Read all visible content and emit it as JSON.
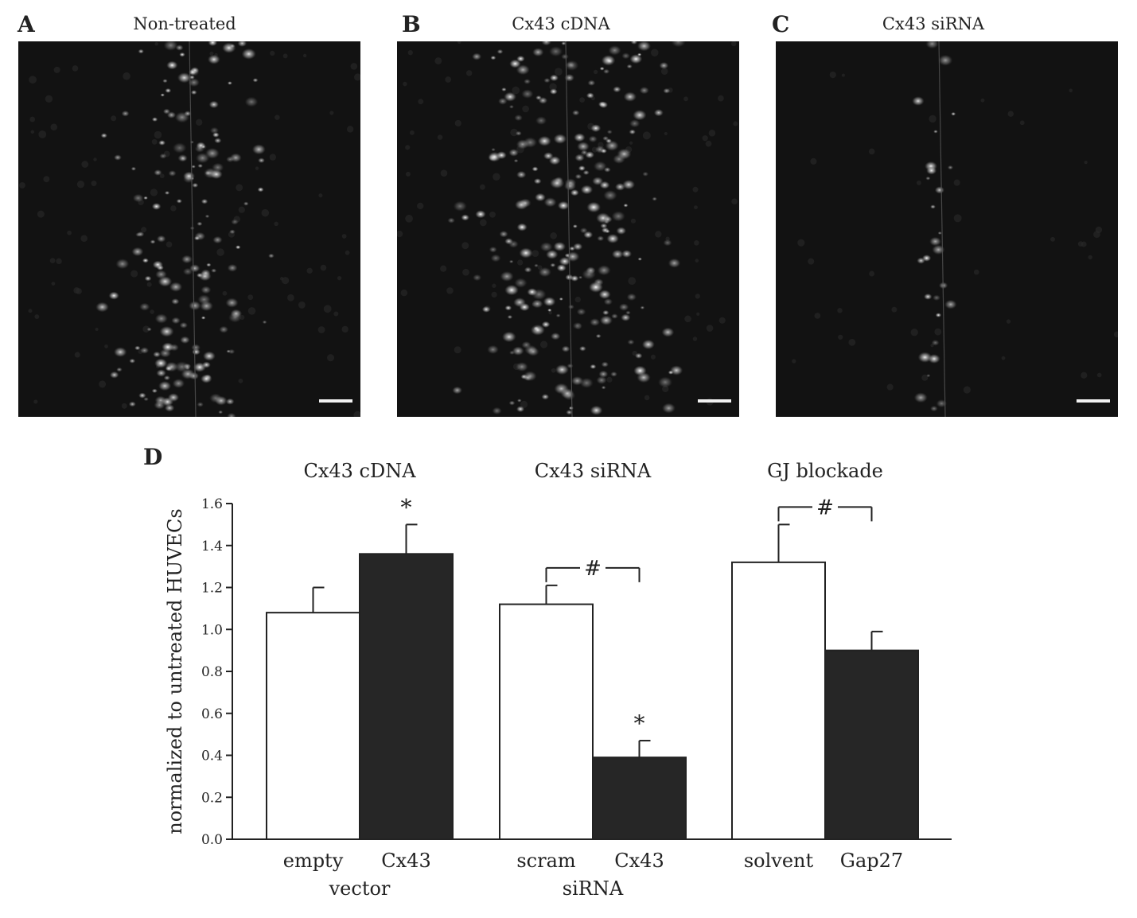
{
  "panels": [
    {
      "letter": "A",
      "title": "Non-treated"
    },
    {
      "letter": "B",
      "title": "Cx43 cDNA"
    },
    {
      "letter": "C",
      "title": "Cx43 siRNA"
    }
  ],
  "chart_letter": "D",
  "chart_data": {
    "type": "bar",
    "ylabel": "normalized to untreated HUVECs",
    "ylim": [
      0,
      1.6
    ],
    "yticks": [
      "0.0",
      "0.2",
      "0.4",
      "0.6",
      "0.8",
      "1.0",
      "1.2",
      "1.4",
      "1.6"
    ],
    "groups": [
      {
        "title": "Cx43 cDNA",
        "sublabel": "vector",
        "bars": [
          {
            "label": "empty",
            "value": 1.08,
            "error": 0.12,
            "color": "#ffffff",
            "annotation": ""
          },
          {
            "label": "Cx43",
            "value": 1.36,
            "error": 0.14,
            "color": "#262626",
            "annotation": "*"
          }
        ],
        "bracket": ""
      },
      {
        "title": "Cx43 siRNA",
        "sublabel": "siRNA",
        "bars": [
          {
            "label": "scram",
            "value": 1.12,
            "error": 0.09,
            "color": "#ffffff",
            "annotation": ""
          },
          {
            "label": "Cx43",
            "value": 0.39,
            "error": 0.08,
            "color": "#262626",
            "annotation": "*"
          }
        ],
        "bracket": "#"
      },
      {
        "title": "GJ blockade",
        "sublabel": "",
        "bars": [
          {
            "label": "solvent",
            "value": 1.32,
            "error": 0.18,
            "color": "#ffffff",
            "annotation": ""
          },
          {
            "label": "Gap27",
            "value": 0.9,
            "error": 0.09,
            "color": "#262626",
            "annotation": ""
          }
        ],
        "bracket": "#"
      }
    ]
  }
}
